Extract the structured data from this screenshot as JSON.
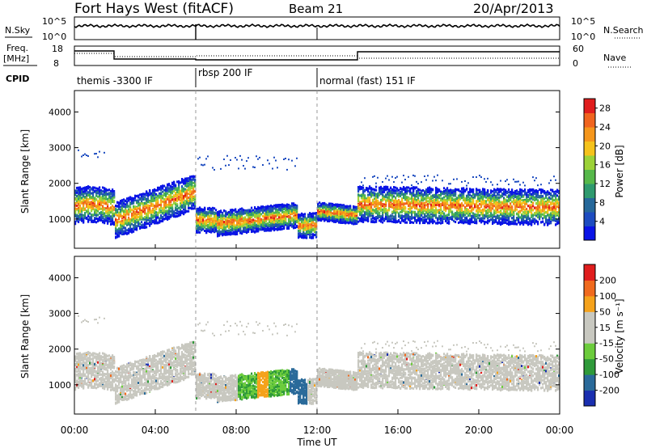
{
  "header": {
    "station": "Fort Hays West (fitACF)",
    "beam": "Beam 21",
    "date": "20/Apr/2013"
  },
  "noise_panel": {
    "left_label": "N.Sky",
    "right_label": "N.Search",
    "ticks": [
      "10^5",
      "10^0"
    ],
    "right_ticks": [
      "10^5",
      "10^0"
    ]
  },
  "freq_panel": {
    "left_label_1": "Freq.",
    "left_label_2": "[MHz]",
    "left_ticks": [
      "18",
      "8"
    ],
    "right_ticks": [
      "60",
      "0"
    ],
    "right_label": "Nave"
  },
  "cpid_panel": {
    "label": "CPID",
    "modes": [
      {
        "name": "themis -3300 IF",
        "start_hour": 0
      },
      {
        "name": "rbsp 200 IF",
        "start_hour": 6
      },
      {
        "name": "normal (fast) 151 IF",
        "start_hour": 12
      }
    ]
  },
  "chart_data": [
    {
      "type": "heatmap",
      "title": "Power",
      "ylabel": "Slant Range [km]",
      "xlabel": "Time UT",
      "xlim": [
        0,
        24
      ],
      "ylim": [
        180,
        4600
      ],
      "yticks": [
        "4000",
        "3000",
        "2000",
        "1000"
      ],
      "ytick_values": [
        4000,
        3000,
        2000,
        1000
      ],
      "colorbar": {
        "label": "Power [dB]",
        "ticks": [
          "28",
          "24",
          "20",
          "16",
          "12",
          "8",
          "4"
        ],
        "tick_values": [
          28,
          24,
          20,
          16,
          12,
          8,
          4
        ],
        "range": [
          0,
          30
        ],
        "colors": [
          "#0a14e6",
          "#1d4cc0",
          "#26689a",
          "#2f9a6e",
          "#56b84a",
          "#9cd238",
          "#f5c21b",
          "#f5961b",
          "#f0641e",
          "#e01d1d"
        ]
      }
    },
    {
      "type": "heatmap",
      "title": "Velocity",
      "ylabel": "Slant Range [km]",
      "xlabel": "Time UT",
      "xlim": [
        0,
        24
      ],
      "ylim": [
        180,
        4600
      ],
      "yticks": [
        "4000",
        "3000",
        "2000",
        "1000"
      ],
      "ytick_values": [
        4000,
        3000,
        2000,
        1000
      ],
      "colorbar": {
        "label": "Velocity [m s⁻¹]",
        "ticks": [
          "200",
          "100",
          "50",
          "15",
          "-15",
          "-50",
          "-100",
          "-200"
        ],
        "colors": [
          "#1a2fb0",
          "#2a6a9a",
          "#2f9a3a",
          "#6ccc3c",
          "#c8c8c0",
          "#c8c8c0",
          "#f5a21b",
          "#f06a1e",
          "#e01d1d"
        ]
      }
    }
  ],
  "time_axis": {
    "ticks": [
      "00:00",
      "04:00",
      "08:00",
      "12:00",
      "16:00",
      "20:00",
      "00:00"
    ],
    "tick_hours": [
      0,
      4,
      8,
      12,
      16,
      20,
      24
    ]
  }
}
